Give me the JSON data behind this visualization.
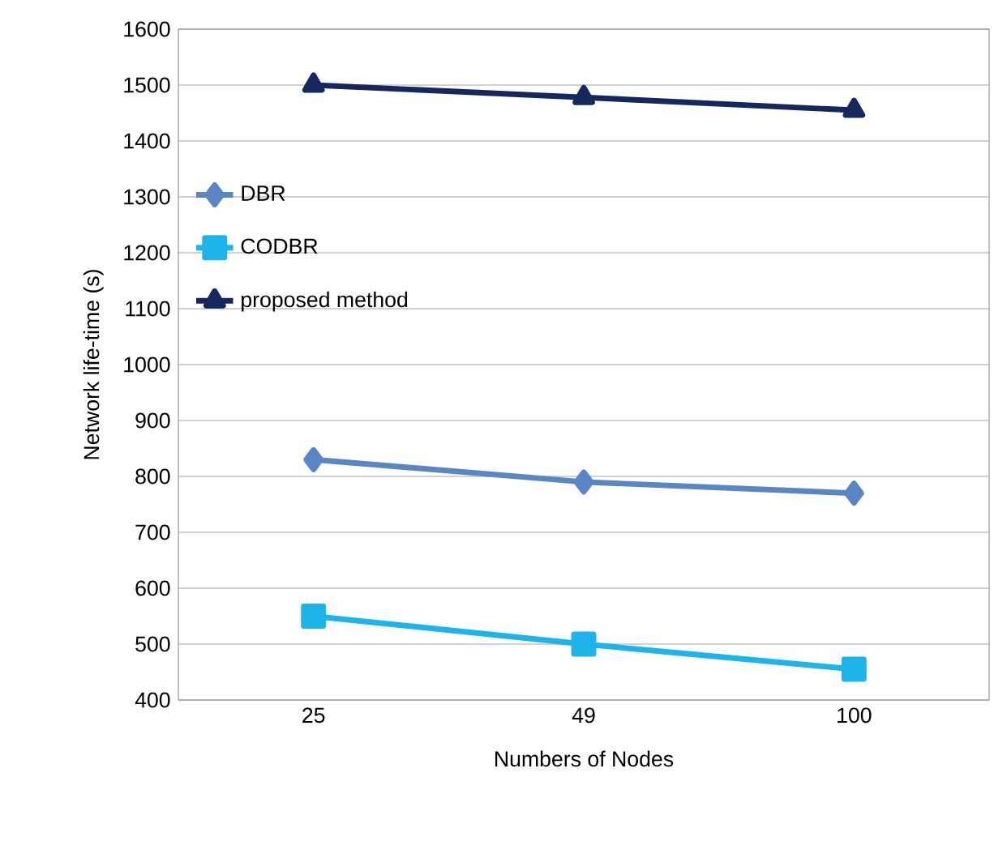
{
  "chart_data": {
    "type": "line",
    "xlabel": "Numbers of Nodes",
    "ylabel": "Network life-time (s)",
    "categories": [
      "25",
      "49",
      "100"
    ],
    "series": [
      {
        "name": "DBR",
        "color": "#5a86c4",
        "values": [
          830,
          790,
          770
        ],
        "marker": "diamond"
      },
      {
        "name": "CODBR",
        "color": "#1eb4ea",
        "values": [
          550,
          500,
          455
        ],
        "marker": "square"
      },
      {
        "name": "proposed method",
        "color": "#16275e",
        "values": [
          1500,
          1478,
          1455
        ],
        "marker": "triangle"
      }
    ],
    "ylim": [
      400,
      1600
    ],
    "yticks": [
      400,
      500,
      600,
      700,
      800,
      900,
      1000,
      1100,
      1200,
      1300,
      1400,
      1500,
      1600
    ],
    "grid": "y",
    "legend": "left"
  }
}
